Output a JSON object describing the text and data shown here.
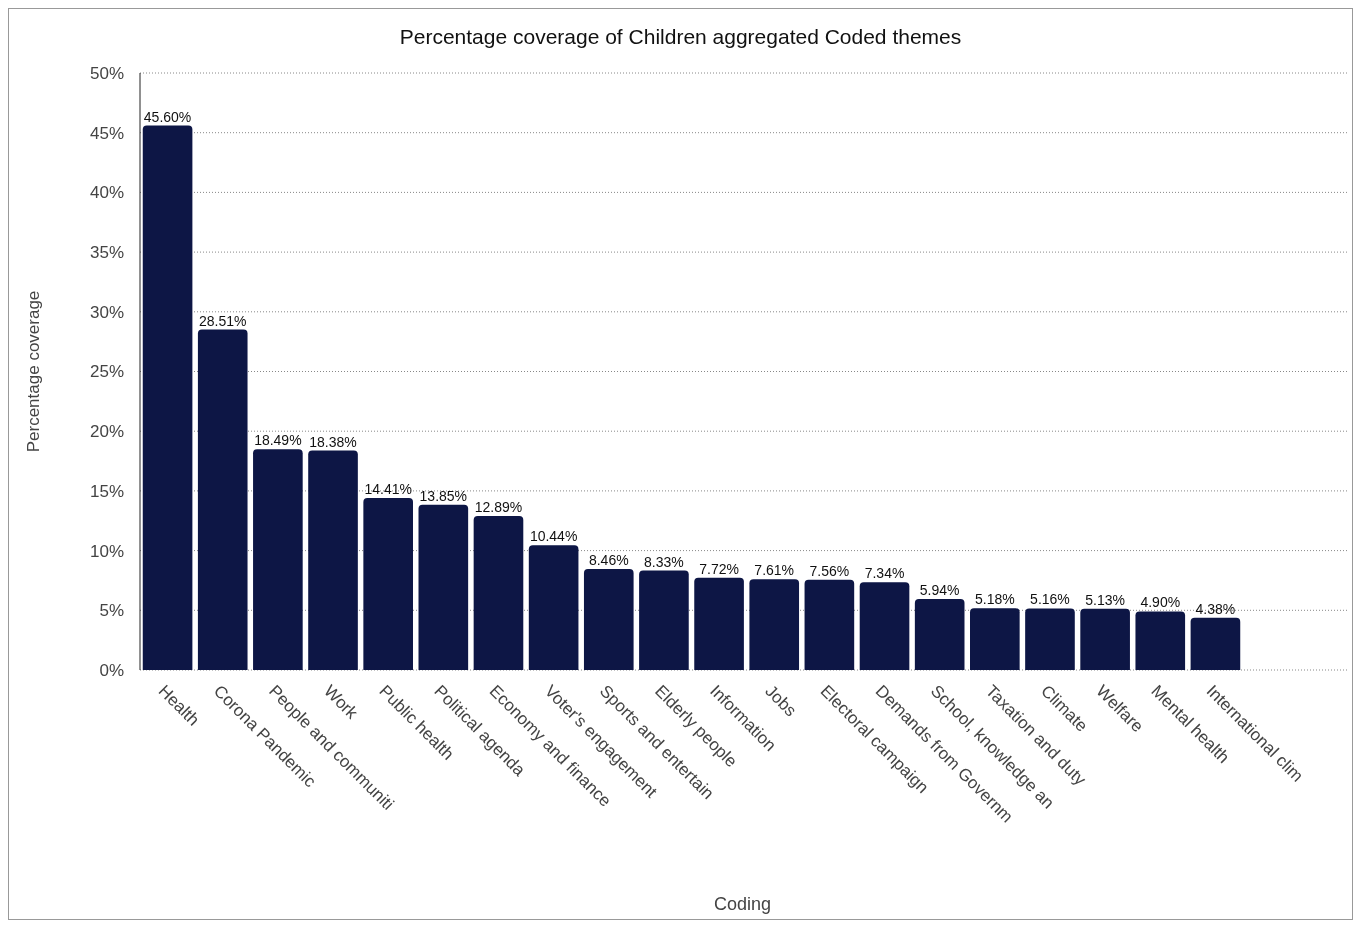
{
  "chart_data": {
    "type": "bar",
    "title": "Percentage coverage of Children aggregated Coded themes",
    "xlabel": "Coding",
    "ylabel": "Percentage coverage",
    "categories": [
      "Health",
      "Corona Pandemic",
      "People and communiti",
      "Work",
      "Public health",
      "Political agenda",
      "Economy and finance",
      "Voter's engagement",
      "Sports and entertain",
      "Elderly people",
      "Information",
      "Jobs",
      "Electoral campaign",
      "Demands from Governm",
      "School, knowledge an",
      "Taxation and duty",
      "Climate",
      "Welfare",
      "Mental health",
      "International clim"
    ],
    "values": [
      45.6,
      28.51,
      18.49,
      18.38,
      14.41,
      13.85,
      12.89,
      10.44,
      8.46,
      8.33,
      7.72,
      7.61,
      7.56,
      7.34,
      5.94,
      5.18,
      5.16,
      5.13,
      4.9,
      4.38
    ],
    "value_labels": [
      "45.60%",
      "28.51%",
      "18.49%",
      "18.38%",
      "14.41%",
      "13.85%",
      "12.89%",
      "10.44%",
      "8.46%",
      "8.33%",
      "7.72%",
      "7.61%",
      "7.56%",
      "7.34%",
      "5.94%",
      "5.18%",
      "5.16%",
      "5.13%",
      "4.90%",
      "4.38%"
    ],
    "color": "#0d1645",
    "ylim": [
      0,
      50
    ],
    "yticks": [
      {
        "value": 0,
        "label": "0%"
      },
      {
        "value": 5,
        "label": "5%"
      },
      {
        "value": 10,
        "label": "10%"
      },
      {
        "value": 15,
        "label": "15%"
      },
      {
        "value": 20,
        "label": "20%"
      },
      {
        "value": 25,
        "label": "25%"
      },
      {
        "value": 30,
        "label": "30%"
      },
      {
        "value": 35,
        "label": "35%"
      },
      {
        "value": 40,
        "label": "40%"
      },
      {
        "value": 45,
        "label": "45%"
      },
      {
        "value": 50,
        "label": "50%"
      }
    ],
    "grid": "y"
  }
}
